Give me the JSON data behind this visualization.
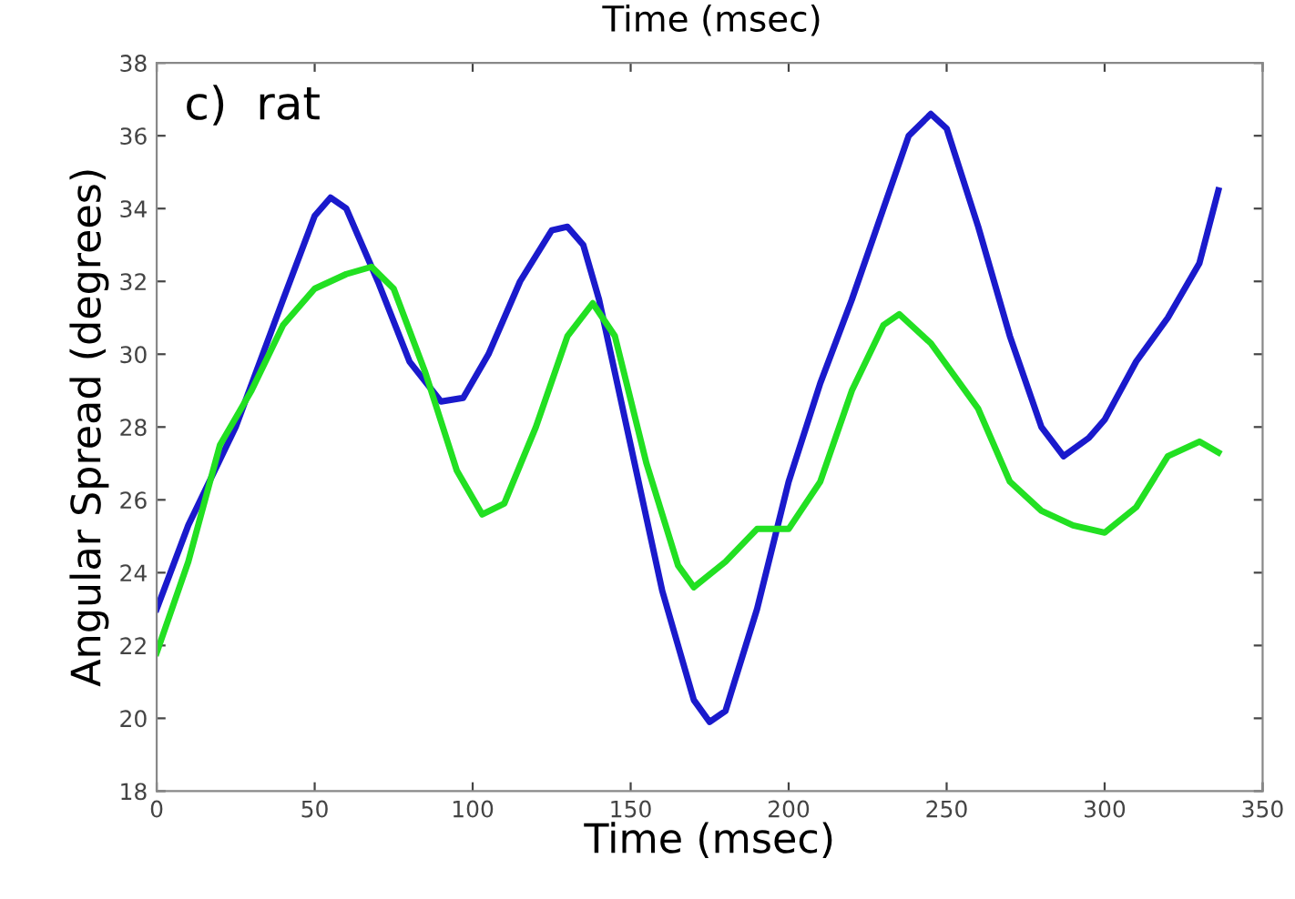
{
  "chart_data": {
    "type": "line",
    "xlabel": "Time (msec)",
    "ylabel": "Angular Spread (degrees)",
    "annotations": [
      "Time (msec)",
      "c)  rat"
    ],
    "xlim": [
      0,
      350
    ],
    "ylim": [
      18,
      38
    ],
    "xticks": [
      0,
      50,
      100,
      150,
      200,
      250,
      300,
      350
    ],
    "yticks": [
      18,
      20,
      22,
      24,
      26,
      28,
      30,
      32,
      34,
      36,
      38
    ],
    "grid": false,
    "legend": false,
    "series": [
      {
        "color": "#1a1acc",
        "x": [
          0,
          10,
          25,
          40,
          50,
          55,
          60,
          70,
          80,
          90,
          97,
          105,
          115,
          125,
          130,
          135,
          140,
          150,
          160,
          170,
          175,
          180,
          190,
          200,
          210,
          220,
          230,
          238,
          245,
          250,
          260,
          270,
          280,
          287,
          295,
          300,
          310,
          320,
          330,
          336
        ],
        "values": [
          23,
          25.3,
          28,
          31.5,
          33.8,
          34.3,
          34,
          32,
          29.8,
          28.7,
          28.8,
          30,
          32,
          33.4,
          33.5,
          33,
          31.5,
          27.5,
          23.5,
          20.5,
          19.9,
          20.2,
          23,
          26.5,
          29.2,
          31.5,
          34,
          36,
          36.6,
          36.2,
          33.5,
          30.5,
          28,
          27.2,
          27.7,
          28.2,
          29.8,
          31,
          32.5,
          34.5
        ]
      },
      {
        "color": "#22e022",
        "x": [
          0,
          10,
          20,
          30,
          40,
          50,
          60,
          68,
          75,
          85,
          95,
          103,
          110,
          120,
          130,
          138,
          145,
          155,
          165,
          170,
          180,
          190,
          200,
          210,
          220,
          230,
          235,
          245,
          260,
          270,
          280,
          290,
          300,
          310,
          320,
          330,
          336
        ],
        "values": [
          21.8,
          24.3,
          27.5,
          29,
          30.8,
          31.8,
          32.2,
          32.4,
          31.8,
          29.5,
          26.8,
          25.6,
          25.9,
          28,
          30.5,
          31.4,
          30.5,
          27,
          24.2,
          23.6,
          24.3,
          25.2,
          25.2,
          26.5,
          29,
          30.8,
          31.1,
          30.3,
          28.5,
          26.5,
          25.7,
          25.3,
          25.1,
          25.8,
          27.2,
          27.6,
          27.3
        ]
      }
    ]
  }
}
